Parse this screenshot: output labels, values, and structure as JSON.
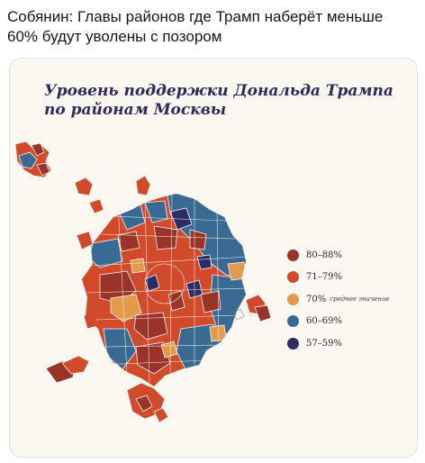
{
  "tweet": {
    "text": "Собянин: Главы районов где Трамп наберёт меньше 60% будут уволены с позором"
  },
  "map": {
    "title_line1": "Уровень поддержки Дональда Трампа",
    "title_line2": "по районам Москвы",
    "legend": [
      {
        "label": "80–88%",
        "note": "",
        "color": "#9a3328"
      },
      {
        "label": "71–79%",
        "note": "",
        "color": "#d24a2c"
      },
      {
        "label": "70%",
        "note": "среднее значение",
        "color": "#e39a4a"
      },
      {
        "label": "60–69%",
        "note": "",
        "color": "#386a93"
      },
      {
        "label": "57–59%",
        "note": "",
        "color": "#2d2c63"
      }
    ]
  }
}
